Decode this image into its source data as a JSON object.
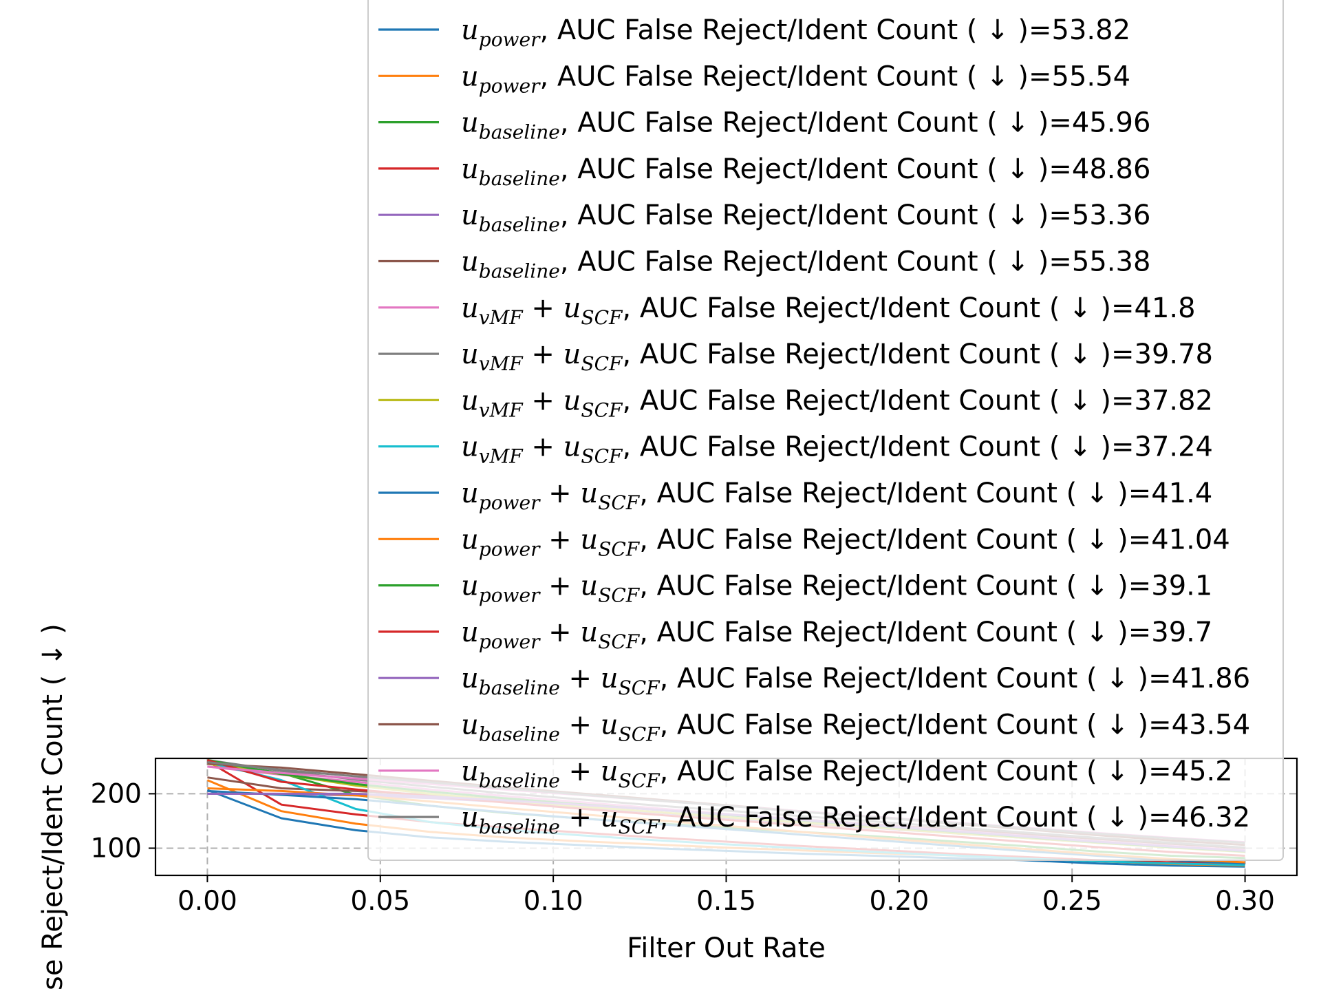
{
  "chart_data": {
    "type": "line",
    "xlabel": "Filter Out Rate",
    "ylabel": "False Reject/Ident Count ( ↓ )",
    "xlim": [
      -0.015,
      0.315
    ],
    "ylim": [
      50,
      265
    ],
    "xticks": [
      0.0,
      0.05,
      0.1,
      0.15,
      0.2,
      0.25,
      0.3
    ],
    "xtick_labels": [
      "0.00",
      "0.05",
      "0.10",
      "0.15",
      "0.20",
      "0.25",
      "0.30"
    ],
    "yticks": [
      100,
      200
    ],
    "ytick_labels": [
      "100",
      "200"
    ],
    "grid": "dashed",
    "legend_position": "upper-right",
    "x": [
      0.0,
      0.0214,
      0.0429,
      0.0643,
      0.0857,
      0.1071,
      0.1286,
      0.15,
      0.1714,
      0.1929,
      0.2143,
      0.2357,
      0.2571,
      0.2786,
      0.3
    ],
    "series": [
      {
        "name_main": "u",
        "name_sub": "power",
        "label_suffix": ", AUC False Reject/Ident Count ( ↓ )=53.82",
        "color": "#1f77b4",
        "values": [
          207,
          155,
          133,
          120,
          112,
          106,
          100,
          95,
          90,
          86,
          82,
          78,
          72,
          68,
          66
        ]
      },
      {
        "name_main": "u",
        "name_sub": "power",
        "label_suffix": ", AUC False Reject/Ident Count ( ↓ )=55.54",
        "color": "#ff7f0e",
        "values": [
          225,
          168,
          145,
          130,
          120,
          113,
          107,
          101,
          96,
          91,
          87,
          82,
          76,
          71,
          68
        ]
      },
      {
        "name_main": "u",
        "name_sub": "baseline",
        "label_suffix": ", AUC False Reject/Ident Count ( ↓ )=45.96",
        "color": "#2ca02c",
        "values": [
          258,
          238,
          198,
          178,
          165,
          155,
          146,
          138,
          130,
          122,
          113,
          104,
          94,
          86,
          82
        ]
      },
      {
        "name_main": "u",
        "name_sub": "baseline",
        "label_suffix": ", AUC False Reject/Ident Count ( ↓ )=48.86",
        "color": "#d62728",
        "values": [
          260,
          180,
          162,
          148,
          138,
          129,
          120,
          112,
          104,
          97,
          90,
          84,
          78,
          74,
          70
        ]
      },
      {
        "name_main": "u",
        "name_sub": "baseline",
        "label_suffix": ", AUC False Reject/Ident Count ( ↓ )=53.36",
        "color": "#9467bd",
        "values": [
          200,
          200,
          197,
          192,
          185,
          176,
          166,
          156,
          146,
          137,
          128,
          119,
          110,
          102,
          95
        ]
      },
      {
        "name_main": "u",
        "name_sub": "baseline",
        "label_suffix": ", AUC False Reject/Ident Count ( ↓ )=55.38",
        "color": "#8c564b",
        "values": [
          230,
          210,
          205,
          198,
          190,
          181,
          172,
          162,
          153,
          144,
          135,
          126,
          117,
          108,
          100
        ]
      },
      {
        "name_main": "u",
        "name_sub": "vMF",
        "plus_sub": "SCF",
        "label_suffix": ", AUC False Reject/Ident Count ( ↓ )=41.8",
        "color": "#e377c2",
        "values": [
          250,
          235,
          222,
          208,
          196,
          185,
          174,
          163,
          153,
          143,
          133,
          123,
          113,
          104,
          96
        ]
      },
      {
        "name_main": "u",
        "name_sub": "vMF",
        "plus_sub": "SCF",
        "label_suffix": ", AUC False Reject/Ident Count ( ↓ )=39.78",
        "color": "#7f7f7f",
        "values": [
          262,
          242,
          226,
          213,
          201,
          190,
          179,
          169,
          159,
          149,
          139,
          129,
          119,
          110,
          101
        ]
      },
      {
        "name_main": "u",
        "name_sub": "vMF",
        "plus_sub": "SCF",
        "label_suffix": ", AUC False Reject/Ident Count ( ↓ )=37.82",
        "color": "#bcbd22",
        "values": [
          255,
          236,
          215,
          200,
          188,
          177,
          167,
          157,
          147,
          138,
          128,
          119,
          110,
          101,
          93
        ]
      },
      {
        "name_main": "u",
        "name_sub": "vMF",
        "plus_sub": "SCF",
        "label_suffix": ", AUC False Reject/Ident Count ( ↓ )=37.24",
        "color": "#17becf",
        "values": [
          258,
          225,
          172,
          148,
          134,
          124,
          115,
          107,
          100,
          93,
          87,
          81,
          76,
          72,
          69
        ]
      },
      {
        "name_main": "u",
        "name_sub": "power",
        "plus_sub": "SCF",
        "label_suffix": ", AUC False Reject/Ident Count ( ↓ )=41.4",
        "color": "#1f77b4",
        "values": [
          205,
          198,
          190,
          178,
          166,
          155,
          145,
          135,
          125,
          115,
          105,
          95,
          86,
          78,
          72
        ]
      },
      {
        "name_main": "u",
        "name_sub": "power",
        "plus_sub": "SCF",
        "label_suffix": ", AUC False Reject/Ident Count ( ↓ )=41.04",
        "color": "#ff7f0e",
        "values": [
          210,
          205,
          197,
          186,
          174,
          163,
          152,
          141,
          130,
          119,
          109,
          99,
          89,
          80,
          74
        ]
      },
      {
        "name_main": "u",
        "name_sub": "power",
        "plus_sub": "SCF",
        "label_suffix": ", AUC False Reject/Ident Count ( ↓ )=39.1",
        "color": "#2ca02c",
        "values": [
          262,
          236,
          218,
          204,
          192,
          181,
          171,
          161,
          151,
          141,
          131,
          121,
          111,
          102,
          94
        ]
      },
      {
        "name_main": "u",
        "name_sub": "power",
        "plus_sub": "SCF",
        "label_suffix": ", AUC False Reject/Ident Count ( ↓ )=39.7",
        "color": "#d62728",
        "values": [
          262,
          222,
          208,
          196,
          184,
          173,
          162,
          152,
          142,
          132,
          122,
          112,
          102,
          93,
          86
        ]
      },
      {
        "name_main": "u",
        "name_sub": "baseline",
        "plus_sub": "SCF",
        "label_suffix": ", AUC False Reject/Ident Count ( ↓ )=41.86",
        "color": "#9467bd",
        "values": [
          200,
          200,
          200,
          195,
          188,
          180,
          171,
          162,
          152,
          142,
          132,
          122,
          112,
          103,
          95
        ]
      },
      {
        "name_main": "u",
        "name_sub": "baseline",
        "plus_sub": "SCF",
        "label_suffix": ", AUC False Reject/Ident Count ( ↓ )=43.54",
        "color": "#8c564b",
        "values": [
          255,
          248,
          236,
          224,
          212,
          201,
          190,
          179,
          168,
          157,
          146,
          135,
          124,
          114,
          106
        ]
      },
      {
        "name_main": "u",
        "name_sub": "baseline",
        "plus_sub": "SCF",
        "label_suffix": ", AUC False Reject/Ident Count ( ↓ )=45.2",
        "color": "#e377c2",
        "values": [
          250,
          238,
          228,
          218,
          208,
          198,
          188,
          178,
          168,
          158,
          148,
          138,
          128,
          119,
          111
        ]
      },
      {
        "name_main": "u",
        "name_sub": "baseline",
        "plus_sub": "SCF",
        "label_suffix": ", AUC False Reject/Ident Count ( ↓ )=46.32",
        "color": "#7f7f7f",
        "values": [
          258,
          244,
          232,
          221,
          210,
          199,
          188,
          178,
          167,
          157,
          147,
          137,
          127,
          118,
          110
        ]
      }
    ]
  }
}
